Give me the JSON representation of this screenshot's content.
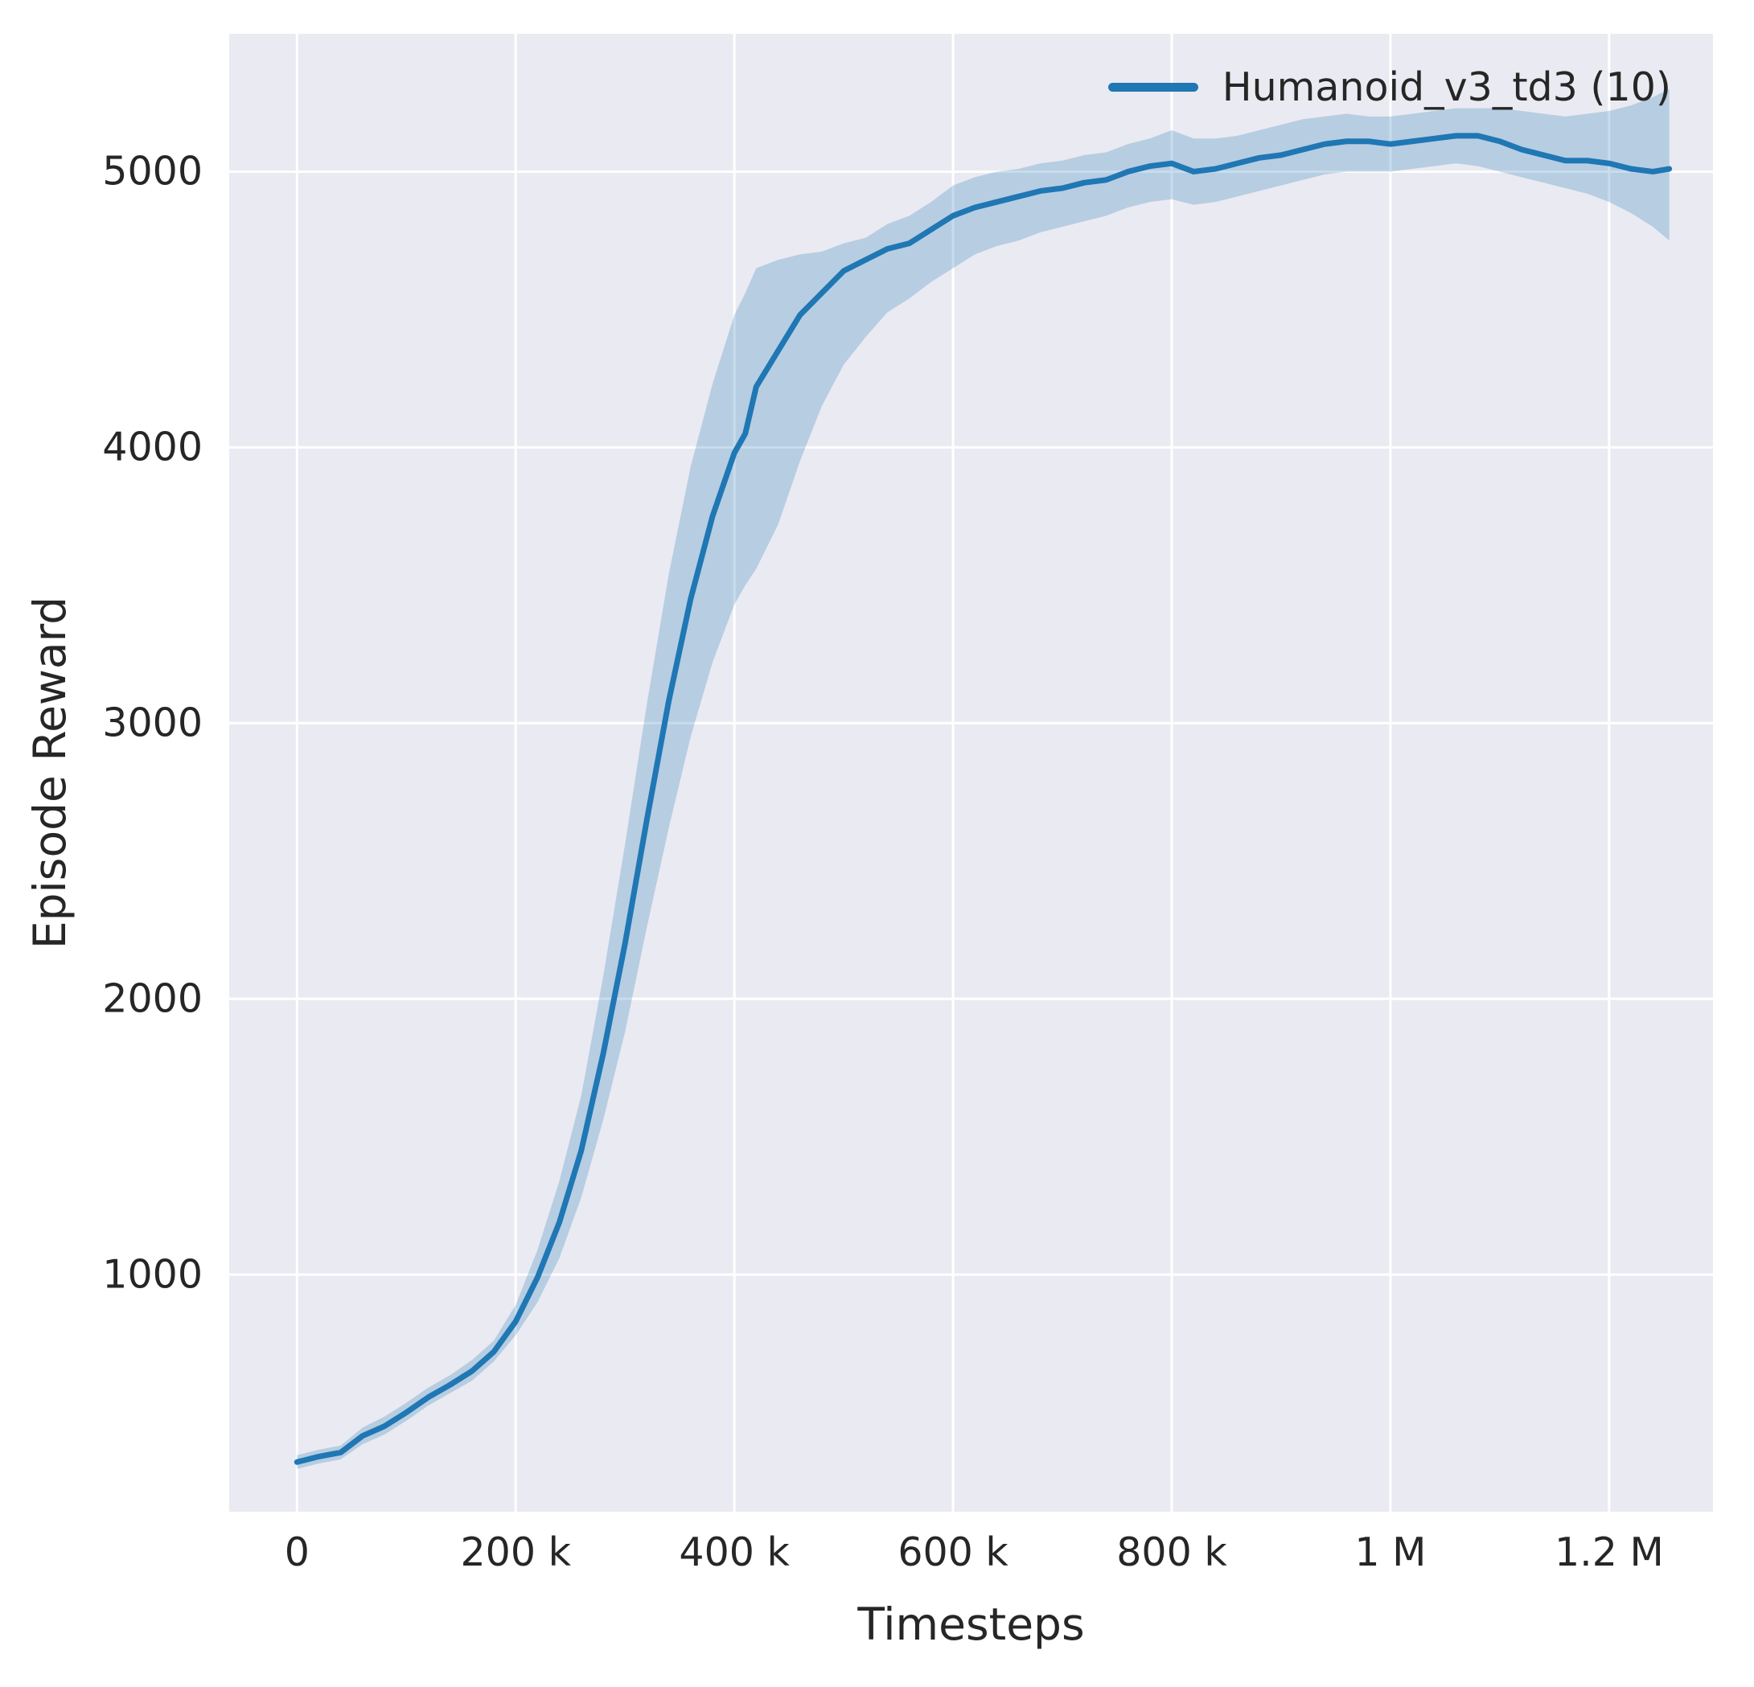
{
  "figure": {
    "xlabel": "Timesteps",
    "ylabel": "Episode Reward"
  },
  "chart_data": {
    "type": "line",
    "title": "",
    "xlabel": "Timesteps",
    "ylabel": "Episode Reward",
    "grid": true,
    "legend_position": "upper right",
    "background": "#eaeaf2",
    "grid_color": "#ffffff",
    "line_color": "#1f77b4",
    "band_color": "#1f77b4",
    "band_alpha": 0.25,
    "xlim": [
      -62000,
      1295000
    ],
    "ylim": [
      140,
      5500
    ],
    "x_ticks": [
      0,
      200000,
      400000,
      600000,
      800000,
      1000000,
      1200000
    ],
    "x_tick_labels": [
      "0",
      "200 k",
      "400 k",
      "600 k",
      "800 k",
      "1 M",
      "1.2 M"
    ],
    "y_ticks": [
      1000,
      2000,
      3000,
      4000,
      5000
    ],
    "y_tick_labels": [
      "1000",
      "2000",
      "3000",
      "4000",
      "5000"
    ],
    "series": [
      {
        "name": "Humanoid_v3_td3 (10)",
        "x": [
          0,
          20000,
          40000,
          60000,
          80000,
          100000,
          120000,
          140000,
          160000,
          180000,
          200000,
          220000,
          240000,
          260000,
          280000,
          300000,
          320000,
          340000,
          360000,
          380000,
          400000,
          410000,
          420000,
          440000,
          460000,
          480000,
          500000,
          520000,
          540000,
          560000,
          580000,
          600000,
          620000,
          640000,
          660000,
          680000,
          700000,
          720000,
          740000,
          760000,
          780000,
          800000,
          820000,
          840000,
          860000,
          880000,
          900000,
          920000,
          940000,
          960000,
          980000,
          1000000,
          1020000,
          1040000,
          1060000,
          1080000,
          1100000,
          1120000,
          1140000,
          1160000,
          1180000,
          1200000,
          1220000,
          1240000,
          1255000
        ],
        "mean": [
          320,
          340,
          355,
          415,
          450,
          500,
          555,
          600,
          650,
          720,
          830,
          990,
          1190,
          1450,
          1800,
          2200,
          2650,
          3080,
          3450,
          3750,
          3980,
          4050,
          4220,
          4350,
          4480,
          4560,
          4640,
          4680,
          4720,
          4740,
          4790,
          4840,
          4870,
          4890,
          4910,
          4930,
          4940,
          4960,
          4970,
          5000,
          5020,
          5030,
          5000,
          5010,
          5030,
          5050,
          5060,
          5080,
          5100,
          5110,
          5110,
          5100,
          5110,
          5120,
          5130,
          5130,
          5110,
          5080,
          5060,
          5040,
          5040,
          5030,
          5010,
          5000,
          5010
        ],
        "lower": [
          295,
          315,
          330,
          385,
          420,
          470,
          525,
          570,
          615,
          685,
          780,
          900,
          1060,
          1280,
          1560,
          1880,
          2260,
          2620,
          2950,
          3220,
          3430,
          3500,
          3560,
          3720,
          3950,
          4150,
          4300,
          4400,
          4490,
          4540,
          4600,
          4650,
          4700,
          4730,
          4750,
          4780,
          4800,
          4820,
          4840,
          4870,
          4890,
          4900,
          4880,
          4890,
          4910,
          4930,
          4950,
          4970,
          4990,
          5000,
          5000,
          5000,
          5010,
          5020,
          5030,
          5020,
          5000,
          4980,
          4960,
          4940,
          4920,
          4890,
          4850,
          4800,
          4750
        ],
        "upper": [
          345,
          365,
          380,
          445,
          485,
          535,
          590,
          635,
          690,
          760,
          890,
          1090,
          1340,
          1650,
          2080,
          2560,
          3070,
          3540,
          3930,
          4230,
          4480,
          4560,
          4650,
          4680,
          4700,
          4710,
          4740,
          4760,
          4810,
          4840,
          4890,
          4950,
          4980,
          5000,
          5010,
          5030,
          5040,
          5060,
          5070,
          5100,
          5120,
          5150,
          5120,
          5120,
          5130,
          5150,
          5170,
          5190,
          5200,
          5210,
          5200,
          5200,
          5210,
          5220,
          5230,
          5230,
          5230,
          5220,
          5210,
          5200,
          5210,
          5220,
          5240,
          5270,
          5300
        ]
      }
    ]
  }
}
